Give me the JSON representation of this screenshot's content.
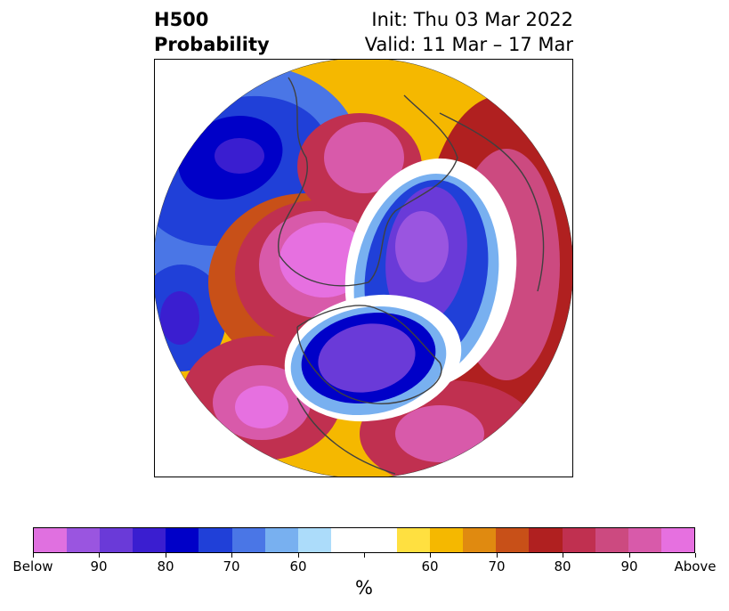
{
  "title": {
    "left_line1": "H500",
    "left_line2": "Probability",
    "right_line1": "Init: Thu 03 Mar 2022",
    "right_line2": "Valid: 11 Mar – 17 Mar"
  },
  "colorbar": {
    "unit": "%",
    "colors": [
      "#e070e0",
      "#9a55e0",
      "#6a3ad8",
      "#3a1ed0",
      "#0000c8",
      "#2040d8",
      "#4a76e6",
      "#78b0f0",
      "#acdcfa",
      "#ffffff",
      "#ffffff",
      "#ffe040",
      "#f5b800",
      "#e08a10",
      "#c85018",
      "#b02020",
      "#c03050",
      "#cc4a80",
      "#d85aaa",
      "#e670e0"
    ],
    "tick_labels": [
      "Below",
      "90",
      "80",
      "70",
      "60",
      "",
      "60",
      "70",
      "80",
      "90",
      "Above"
    ]
  },
  "map": {
    "projection": "north-polar-stereographic",
    "field": "H500 anomaly probability",
    "ocean_color": "#ffffff",
    "coastline_color": "#404040"
  }
}
